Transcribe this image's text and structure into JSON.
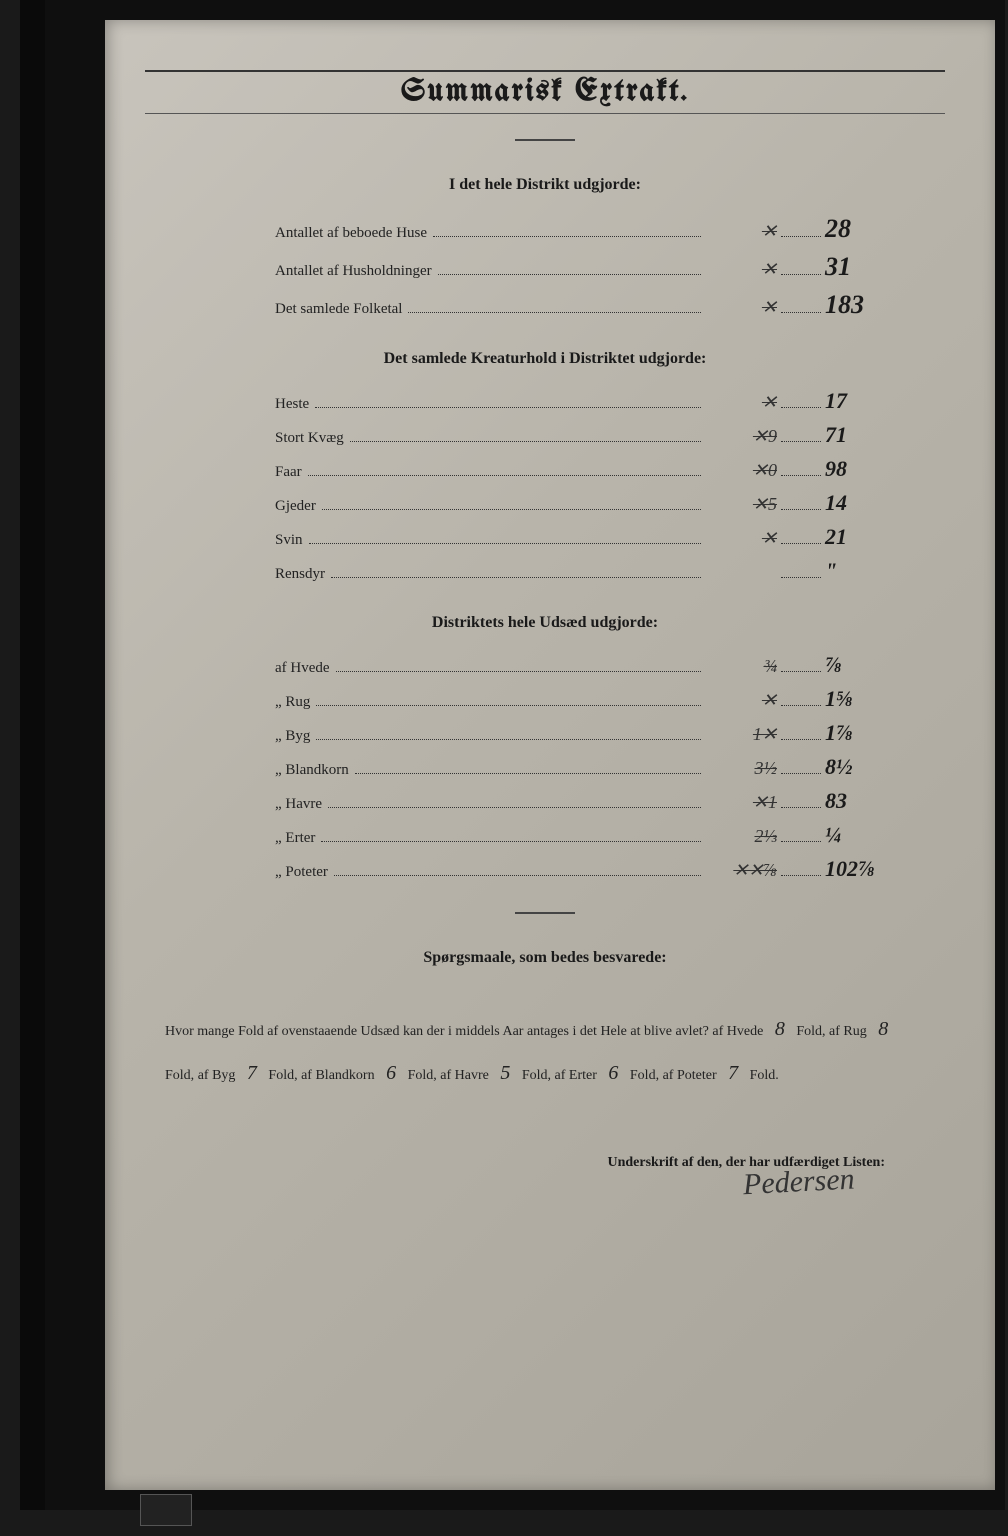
{
  "title": "Summarisk Extrakt.",
  "section1": {
    "heading": "I det hele Distrikt udgjorde:",
    "rows": [
      {
        "label": "Antallet af beboede Huse",
        "old": "✕",
        "val": "28"
      },
      {
        "label": "Antallet af Husholdninger",
        "old": "✕",
        "val": "31"
      },
      {
        "label": "Det samlede Folketal",
        "old": "✕",
        "val": "183"
      }
    ]
  },
  "section2": {
    "heading": "Det samlede Kreaturhold i Distriktet udgjorde:",
    "rows": [
      {
        "label": "Heste",
        "old": "✕",
        "val": "17"
      },
      {
        "label": "Stort Kvæg",
        "old": "✕9",
        "val": "71"
      },
      {
        "label": "Faar",
        "old": "✕0",
        "val": "98"
      },
      {
        "label": "Gjeder",
        "old": "✕5",
        "val": "14"
      },
      {
        "label": "Svin",
        "old": "✕",
        "val": "21"
      },
      {
        "label": "Rensdyr",
        "old": "",
        "val": "\""
      }
    ]
  },
  "section3": {
    "heading": "Distriktets hele Udsæd udgjorde:",
    "rows": [
      {
        "label": "af Hvede",
        "old": "¾",
        "val": "⅞"
      },
      {
        "label": "„ Rug",
        "old": "✕",
        "val": "1⅝"
      },
      {
        "label": "„ Byg",
        "old": "1✕",
        "val": "1⅞"
      },
      {
        "label": "„ Blandkorn",
        "old": "3½",
        "val": "8½"
      },
      {
        "label": "„ Havre",
        "old": "✕1",
        "val": "83"
      },
      {
        "label": "„ Erter",
        "old": "2⅓",
        "val": "¼"
      },
      {
        "label": "„ Poteter",
        "old": "✕✕⅞",
        "val": "102⅞"
      }
    ]
  },
  "questions": {
    "heading": "Spørgsmaale, som bedes besvarede:",
    "intro": "Hvor mange Fold af ovenstaaende Udsæd kan der i middels Aar antages i det Hele at blive avlet?",
    "items": [
      {
        "crop": "af Hvede",
        "val": "8",
        "unit": "Fold,"
      },
      {
        "crop": "af Rug",
        "val": "8",
        "unit": "Fold,"
      },
      {
        "crop": "af Byg",
        "val": "7",
        "unit": "Fold,"
      },
      {
        "crop": "af Blandkorn",
        "val": "6",
        "unit": "Fold,"
      },
      {
        "crop": "af Havre",
        "val": "5",
        "unit": "Fold,"
      },
      {
        "crop": "af Erter",
        "val": "6",
        "unit": "Fold,"
      },
      {
        "crop": "af Poteter",
        "val": "7",
        "unit": "Fold."
      }
    ]
  },
  "sig_label": "Underskrift af den, der har udfærdiget Listen:",
  "signature": "Pedersen"
}
